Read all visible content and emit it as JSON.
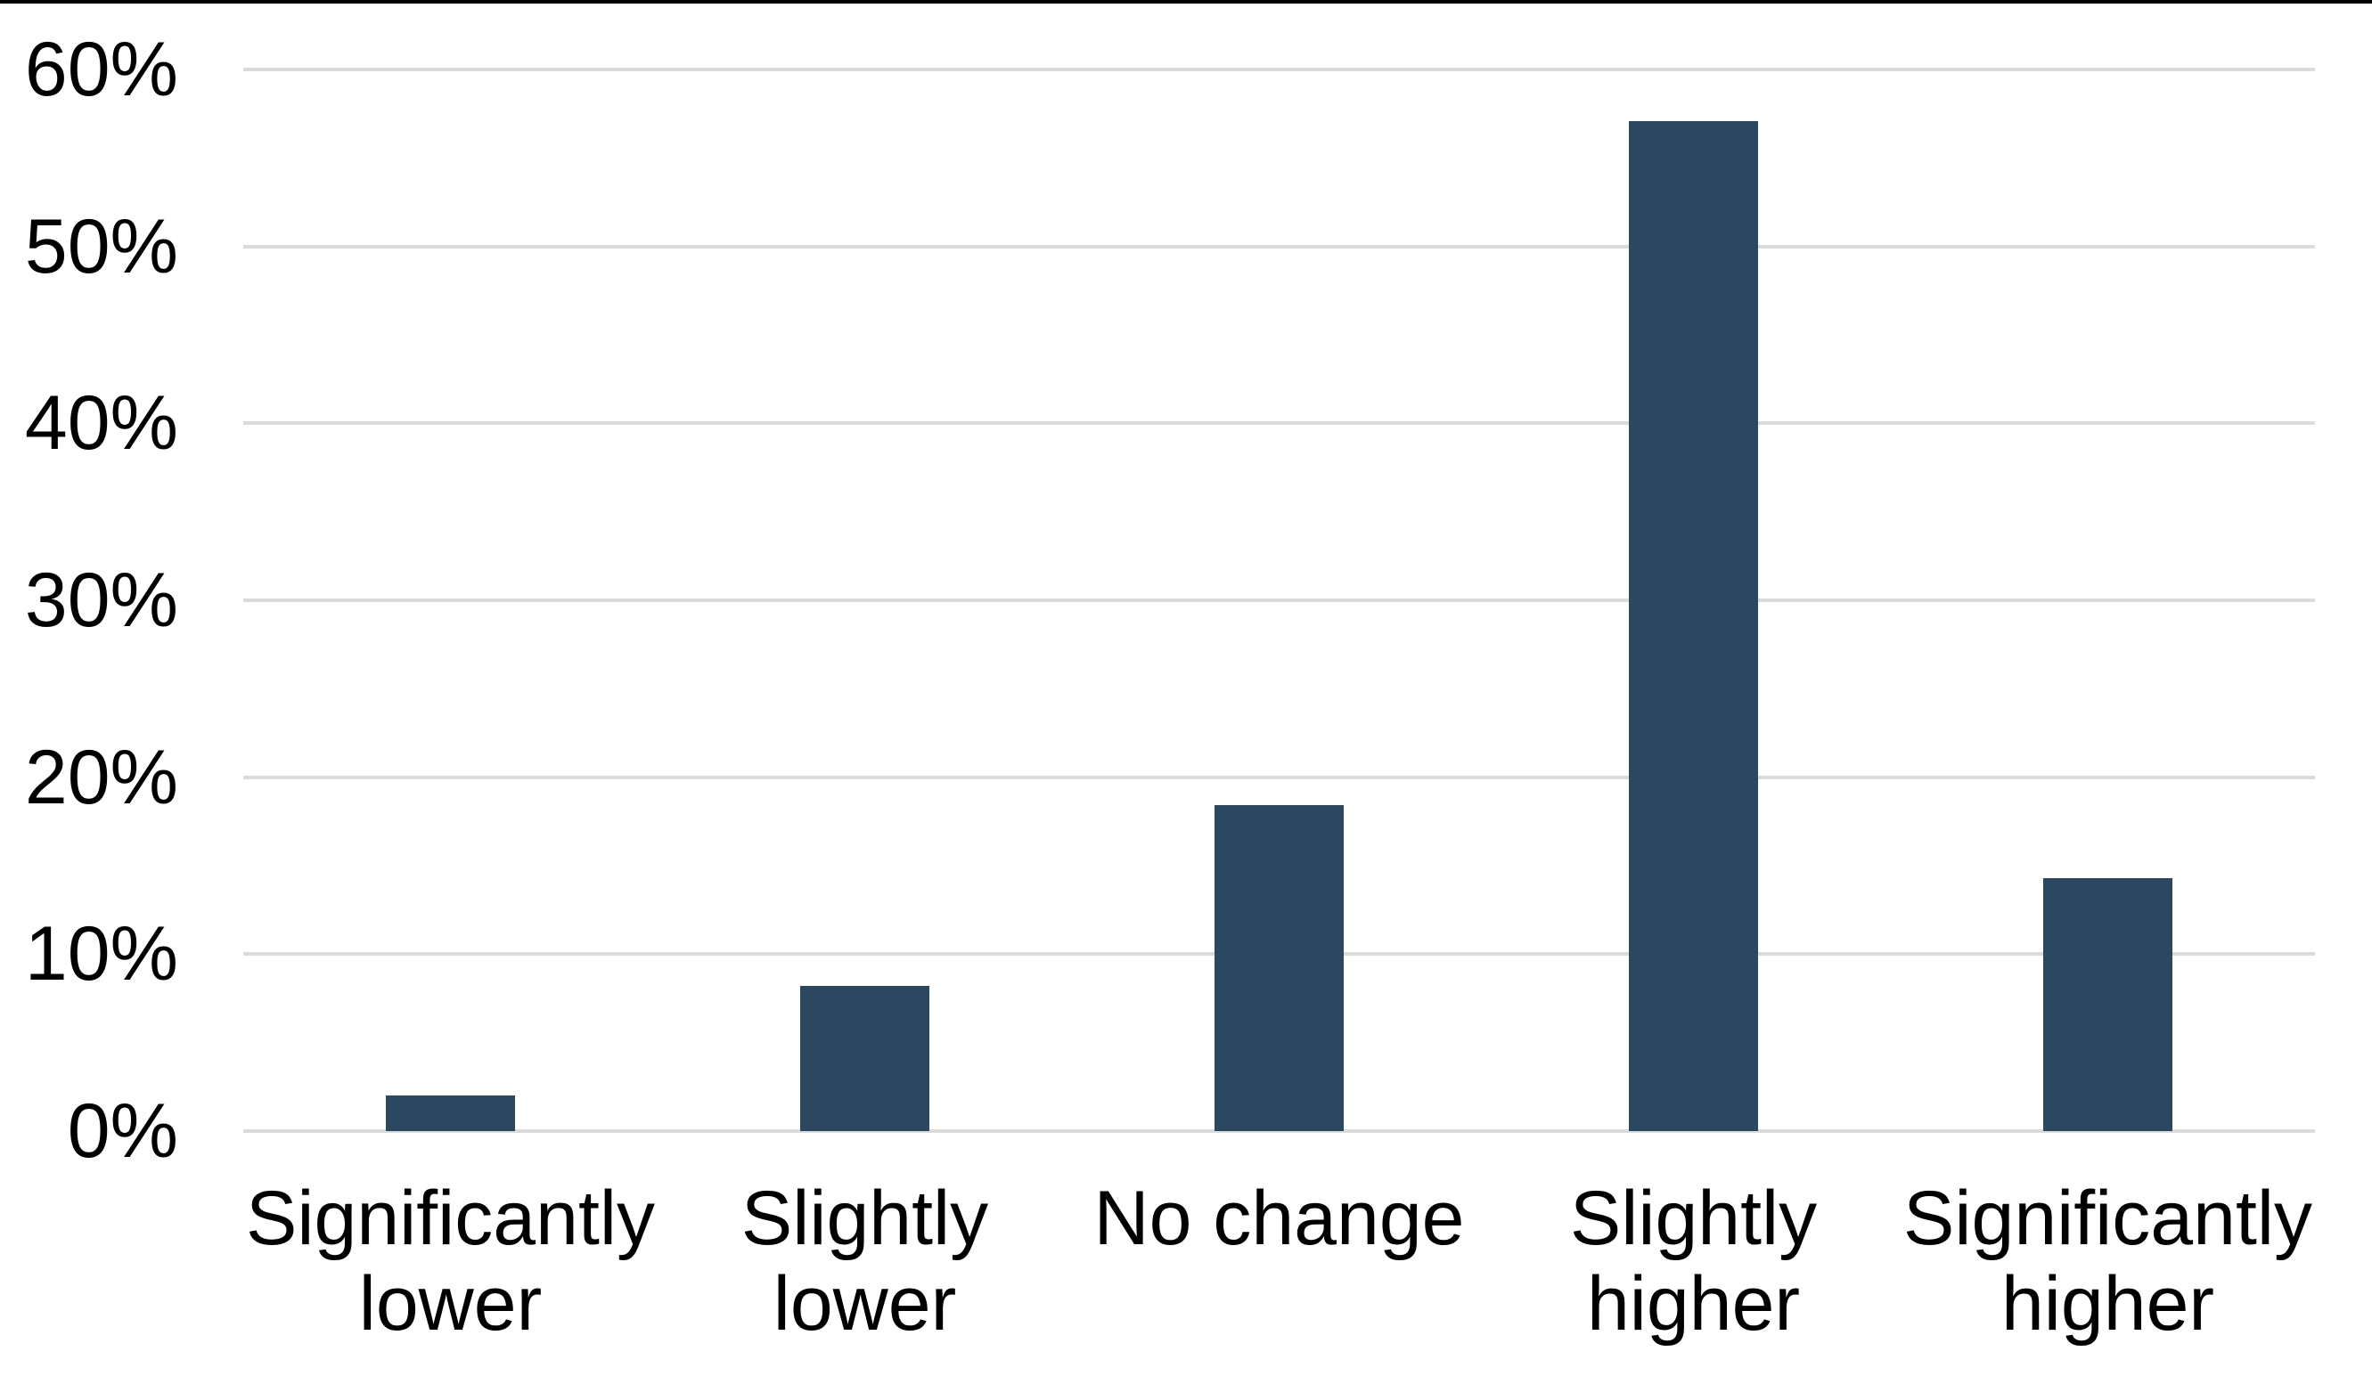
{
  "chart_data": {
    "type": "bar",
    "title": "",
    "xlabel": "",
    "ylabel": "",
    "categories": [
      "Significantly lower",
      "Slightly lower",
      "No change",
      "Slightly higher",
      "Significantly higher"
    ],
    "values": [
      2.0,
      8.2,
      18.4,
      57.1,
      14.3
    ],
    "value_unit": "%",
    "ylim": [
      0,
      60
    ],
    "ytick_values": [
      0,
      10,
      20,
      30,
      40,
      50,
      60
    ],
    "ytick_labels": [
      "0%",
      "10%",
      "20%",
      "30%",
      "40%",
      "50%",
      "60%"
    ],
    "grid": true,
    "legend": false,
    "series_name": "",
    "colors": {
      "bar_fill": "#2C4860",
      "gridline": "#DBDBDB",
      "axis_line": "#DBDBDB",
      "label_text": "#000000",
      "background": "#FFFFFF",
      "top_edge_strip": "#000000"
    }
  }
}
